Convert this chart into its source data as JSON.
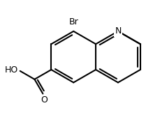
{
  "bg_color": "#ffffff",
  "bond_color": "#000000",
  "text_color": "#000000",
  "line_width": 1.5,
  "font_size": 9,
  "label_Br": "Br",
  "label_N": "N",
  "label_HO": "HO",
  "label_O": "O"
}
